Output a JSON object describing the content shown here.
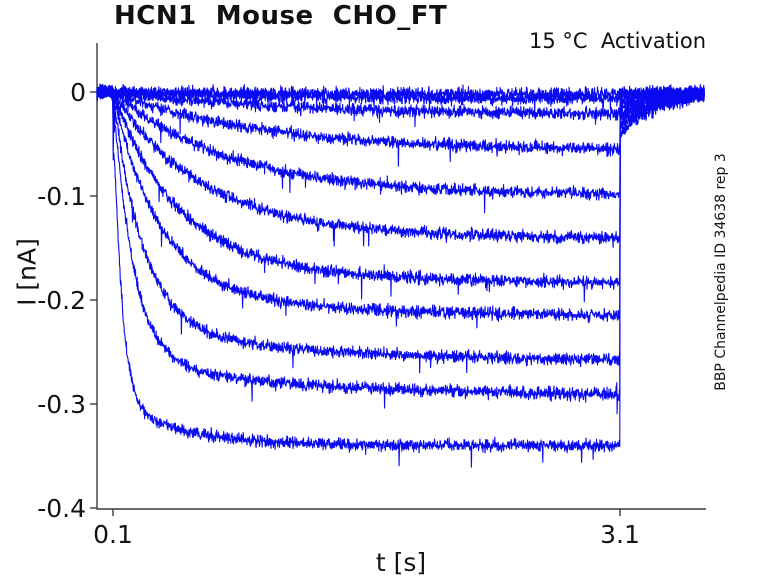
{
  "chart_data": {
    "type": "line",
    "title": "HCN1  Mouse  CHO_FT",
    "annotations": {
      "top_right": "15 °C  Activation",
      "right_vertical": "BBP Channelpedia ID 34638 rep 3"
    },
    "x_axis": {
      "label": "t [s]",
      "ticks": [
        0.1,
        3.1
      ],
      "tick_labels": [
        "0.1",
        "3.1"
      ],
      "range_s": [
        0.005,
        3.61
      ]
    },
    "y_axis": {
      "label": "I [nA]",
      "ticks": [
        0,
        -0.1,
        -0.2,
        -0.3,
        -0.4
      ],
      "tick_labels": [
        "0",
        "-0.1",
        "-0.2",
        "-0.3",
        "-0.4"
      ],
      "range_nA": [
        -0.401,
        0.047
      ]
    },
    "grid": false,
    "legend": null,
    "colors": {
      "trace": "#0909f2",
      "axis": "#3c3c3c",
      "text": "#141414",
      "background": "#ffffff"
    },
    "protocol": {
      "baseline_nA": 0,
      "step_onset_s": 0.1,
      "step_end_s": 3.1,
      "trace_end_s": 3.6,
      "tail_time_constant_s": 0.22,
      "noise_std_nA": 0.003
    },
    "sweeps": [
      {
        "steady_state_nA": -0.002,
        "tau_s": 1.0,
        "tail_nA": -0.001
      },
      {
        "steady_state_nA": -0.007,
        "tau_s": 1.1,
        "tail_nA": -0.002
      },
      {
        "steady_state_nA": -0.022,
        "tau_s": 1.0,
        "tail_nA": -0.004
      },
      {
        "steady_state_nA": -0.057,
        "tau_s": 0.85,
        "tail_nA": -0.008
      },
      {
        "steady_state_nA": -0.1,
        "tau_s": 0.65,
        "tail_nA": -0.013
      },
      {
        "steady_state_nA": -0.142,
        "tau_s": 0.5,
        "tail_nA": -0.017
      },
      {
        "steady_state_nA": -0.185,
        "tau_s": 0.37,
        "tail_nA": -0.022
      },
      {
        "steady_state_nA": -0.217,
        "tau_s": 0.27,
        "tail_nA": -0.026
      },
      {
        "steady_state_nA": -0.26,
        "tau_s": 0.18,
        "tail_nA": -0.031
      },
      {
        "steady_state_nA": -0.292,
        "tau_s": 0.12,
        "tail_nA": -0.035
      },
      {
        "steady_state_nA": -0.34,
        "tau_s": 0.05,
        "tail_nA": -0.042
      }
    ]
  }
}
